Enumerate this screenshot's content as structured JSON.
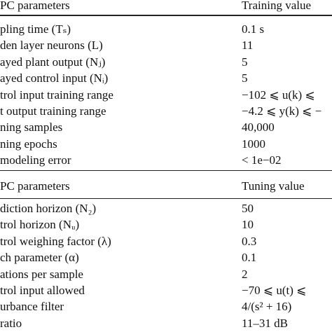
{
  "table": {
    "sections": [
      {
        "header": [
          "PC parameters",
          "Training value"
        ],
        "rows": [
          [
            "pling time (Tₛ)",
            "0.1 s"
          ],
          [
            "den layer neurons (L)",
            "11"
          ],
          [
            "ayed plant output (Nⱼ)",
            "5"
          ],
          [
            "ayed control input (Nᵢ)",
            "5"
          ],
          [
            "trol input training range",
            "−102 ⩽ u(k) ⩽"
          ],
          [
            "t output training range",
            "−4.2 ⩽ y(k) ⩽ −"
          ],
          [
            "ning samples",
            "40,000"
          ],
          [
            "ning epochs",
            "1000"
          ],
          [
            "modeling error",
            "< 1e−02"
          ]
        ]
      },
      {
        "header": [
          "PC parameters",
          "Tuning value"
        ],
        "rows": [
          [
            "diction horizon (N₂)",
            "50"
          ],
          [
            "trol horizon (Nᵤ)",
            "10"
          ],
          [
            "trol weighing factor (λ)",
            "0.3"
          ],
          [
            "ch parameter (α)",
            "0.1"
          ],
          [
            "ations per sample",
            "2"
          ],
          [
            "trol input allowed",
            "−70 ⩽ u(t) ⩽"
          ],
          [
            "urbance filter",
            "4/(s² + 16)"
          ],
          [
            "ratio",
            "11–31 dB"
          ]
        ]
      }
    ]
  }
}
